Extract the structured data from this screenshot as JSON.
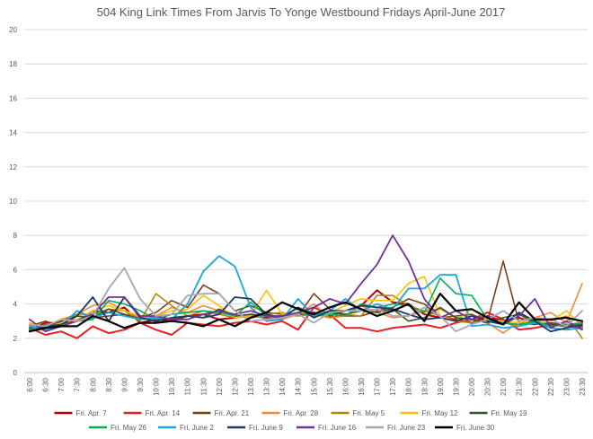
{
  "chart_data": {
    "type": "line",
    "title": "504 King Link Times From Jarvis To Yonge Westbound Fridays April-June 2017",
    "xlabel": "",
    "ylabel": "",
    "ylim": [
      0,
      20
    ],
    "yticks": [
      0,
      2,
      4,
      6,
      8,
      10,
      12,
      14,
      16,
      18,
      20
    ],
    "grid": true,
    "legend_position": "bottom",
    "x": [
      "6:00",
      "6:30",
      "7:00",
      "7:30",
      "8:00",
      "8:30",
      "9:00",
      "9:30",
      "10:00",
      "10:30",
      "11:00",
      "11:30",
      "12:00",
      "12:30",
      "13:00",
      "13:30",
      "14:00",
      "14:30",
      "15:00",
      "15:30",
      "16:00",
      "16:30",
      "17:00",
      "17:30",
      "18:00",
      "18:30",
      "19:00",
      "19:30",
      "20:00",
      "20:30",
      "21:00",
      "21:30",
      "22:00",
      "22:30",
      "23:00",
      "23:30"
    ],
    "series": [
      {
        "name": "Fri. Apr. 7",
        "color": "#c00000",
        "width": 2,
        "values": [
          2.5,
          2.9,
          2.9,
          3.0,
          3.6,
          3.5,
          3.8,
          2.9,
          3.1,
          3.0,
          3.3,
          3.4,
          3.1,
          3.2,
          3.3,
          3.2,
          3.3,
          3.4,
          3.5,
          3.3,
          3.6,
          3.9,
          4.8,
          4.1,
          4.0,
          3.4,
          3.2,
          3.1,
          2.9,
          3.3,
          3.0,
          3.2,
          2.9,
          2.8,
          2.7,
          2.6
        ]
      },
      {
        "name": "Fri. Apr. 14",
        "color": "#ee1c25",
        "width": 2,
        "values": [
          2.6,
          2.2,
          2.4,
          2.0,
          2.7,
          2.3,
          2.5,
          2.9,
          2.5,
          2.2,
          2.9,
          2.8,
          2.7,
          2.9,
          3.0,
          2.8,
          3.0,
          2.5,
          3.8,
          3.4,
          2.6,
          2.6,
          2.4,
          2.6,
          2.7,
          2.8,
          2.6,
          2.9,
          3.1,
          3.5,
          3.1,
          2.5,
          2.6,
          2.8,
          2.7,
          2.9
        ]
      },
      {
        "name": "Fri. Apr. 21",
        "color": "#7f3f14",
        "width": 1.6,
        "values": [
          2.7,
          3.0,
          2.7,
          3.3,
          3.2,
          3.3,
          3.4,
          3.2,
          3.5,
          4.2,
          3.8,
          5.1,
          4.6,
          3.6,
          3.9,
          3.5,
          3.4,
          3.3,
          4.6,
          3.7,
          3.3,
          3.3,
          3.6,
          3.8,
          4.3,
          4.0,
          3.2,
          3.3,
          3.4,
          3.0,
          6.5,
          2.9,
          2.8,
          2.9,
          2.8,
          2.7
        ]
      },
      {
        "name": "Fri. Apr. 28",
        "color": "#f58a3c",
        "width": 1.6,
        "values": [
          2.8,
          2.4,
          3.1,
          3.4,
          3.9,
          4.1,
          3.6,
          3.2,
          3.3,
          3.8,
          3.5,
          3.9,
          3.6,
          3.3,
          3.2,
          3.3,
          3.1,
          3.4,
          4.0,
          3.2,
          3.3,
          3.9,
          3.5,
          3.2,
          3.3,
          3.6,
          3.7,
          3.2,
          3.1,
          2.9,
          2.3,
          3.0,
          3.2,
          3.5,
          2.9,
          5.2
        ]
      },
      {
        "name": "Fri. May 5",
        "color": "#b8860b",
        "width": 1.6,
        "values": [
          2.4,
          2.7,
          3.0,
          3.4,
          3.4,
          3.7,
          3.6,
          3.0,
          4.6,
          3.9,
          3.3,
          3.6,
          3.4,
          3.2,
          3.3,
          3.4,
          3.5,
          3.3,
          3.4,
          3.2,
          3.4,
          3.3,
          4.5,
          4.5,
          3.9,
          3.6,
          3.3,
          3.0,
          2.9,
          3.1,
          2.9,
          2.7,
          3.0,
          3.0,
          3.3,
          2.0
        ]
      },
      {
        "name": "Fri. May 12",
        "color": "#ffc000",
        "width": 1.6,
        "values": [
          2.9,
          2.6,
          2.9,
          3.1,
          3.6,
          3.9,
          3.6,
          3.3,
          3.3,
          3.6,
          3.7,
          4.5,
          3.9,
          3.2,
          3.3,
          4.8,
          3.4,
          3.7,
          3.2,
          3.5,
          3.9,
          4.3,
          4.2,
          4.2,
          5.2,
          5.6,
          3.3,
          3.0,
          3.7,
          3.1,
          3.0,
          2.9,
          3.1,
          3.0,
          3.6,
          2.7
        ]
      },
      {
        "name": "Fri. May 19",
        "color": "#375623",
        "width": 1.6,
        "values": [
          2.6,
          2.7,
          3.0,
          3.3,
          3.2,
          3.7,
          3.4,
          3.1,
          3.2,
          3.1,
          3.3,
          3.2,
          3.7,
          3.3,
          3.4,
          3.3,
          3.2,
          3.8,
          3.4,
          3.5,
          3.4,
          3.6,
          3.5,
          3.7,
          3.0,
          3.2,
          3.8,
          3.2,
          3.1,
          2.9,
          3.2,
          3.4,
          2.9,
          2.8,
          2.8,
          2.7
        ]
      },
      {
        "name": "Fri. May 26",
        "color": "#00b050",
        "width": 1.6,
        "values": [
          2.5,
          2.8,
          2.7,
          3.0,
          3.1,
          4.2,
          4.0,
          3.6,
          3.1,
          3.4,
          3.5,
          3.6,
          3.5,
          3.3,
          4.1,
          3.3,
          3.3,
          3.5,
          3.3,
          3.4,
          3.3,
          4.0,
          3.8,
          4.0,
          3.9,
          3.5,
          5.5,
          4.6,
          4.5,
          3.1,
          2.9,
          2.8,
          3.0,
          2.7,
          2.8,
          2.9
        ]
      },
      {
        "name": "Fri. June 2",
        "color": "#1aa6e0",
        "width": 1.8,
        "values": [
          2.7,
          2.5,
          2.7,
          3.6,
          3.2,
          3.5,
          3.3,
          3.1,
          3.2,
          3.1,
          4.0,
          5.9,
          6.8,
          6.2,
          3.8,
          3.0,
          3.1,
          4.3,
          3.3,
          3.6,
          4.3,
          3.6,
          4.0,
          3.7,
          4.9,
          4.9,
          5.7,
          5.7,
          2.7,
          2.8,
          2.6,
          2.7,
          2.9,
          2.6,
          2.5,
          2.6
        ]
      },
      {
        "name": "Fri. June 9",
        "color": "#1f3864",
        "width": 1.8,
        "values": [
          2.4,
          2.7,
          2.8,
          3.3,
          4.4,
          3.0,
          4.4,
          3.2,
          3.0,
          3.2,
          3.3,
          3.2,
          3.4,
          4.4,
          4.3,
          3.4,
          3.2,
          3.8,
          3.2,
          3.6,
          3.6,
          3.9,
          3.8,
          3.7,
          3.4,
          3.1,
          3.2,
          3.0,
          3.3,
          3.0,
          2.8,
          3.5,
          3.0,
          2.4,
          2.6,
          2.8
        ]
      },
      {
        "name": "Fri. June 16",
        "color": "#7030a0",
        "width": 1.8,
        "values": [
          3.1,
          2.4,
          2.7,
          3.0,
          3.4,
          4.4,
          4.4,
          3.3,
          3.3,
          3.1,
          3.1,
          3.4,
          3.6,
          3.4,
          3.6,
          3.3,
          3.3,
          3.5,
          3.8,
          4.3,
          4.0,
          5.2,
          6.3,
          8.0,
          6.5,
          4.3,
          3.2,
          3.6,
          3.1,
          3.3,
          2.8,
          3.3,
          4.3,
          2.6,
          3.0,
          2.5
        ]
      },
      {
        "name": "Fri. June 23",
        "color": "#a6a6b6",
        "width": 1.8,
        "values": [
          2.8,
          2.7,
          3.1,
          3.0,
          3.3,
          4.9,
          6.1,
          4.3,
          3.3,
          3.4,
          4.5,
          4.6,
          4.6,
          3.6,
          3.0,
          3.1,
          3.2,
          3.4,
          2.9,
          3.5,
          3.6,
          3.6,
          3.7,
          3.3,
          3.3,
          3.8,
          3.3,
          2.4,
          2.8,
          3.1,
          3.6,
          3.0,
          3.2,
          3.1,
          2.7,
          3.6
        ]
      },
      {
        "name": "Fri. June 30",
        "color": "#000000",
        "width": 2.2,
        "values": [
          2.4,
          2.6,
          2.7,
          2.7,
          3.3,
          3.0,
          2.6,
          2.9,
          2.9,
          3.0,
          2.9,
          2.7,
          3.1,
          2.7,
          3.2,
          3.5,
          4.1,
          3.7,
          3.4,
          3.8,
          4.1,
          3.7,
          3.3,
          3.6,
          4.0,
          3.0,
          4.6,
          3.6,
          3.7,
          3.2,
          2.8,
          4.1,
          3.1,
          3.1,
          3.2,
          3.0
        ]
      }
    ]
  }
}
